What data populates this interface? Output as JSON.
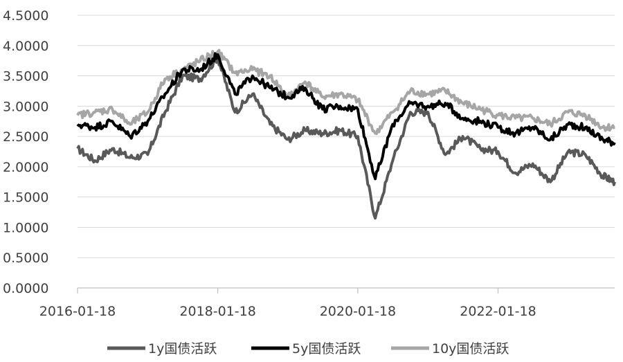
{
  "chart_data": {
    "type": "line",
    "title": "",
    "xlabel": "",
    "ylabel": "",
    "ylim": [
      0,
      4.5
    ],
    "y_ticks": [
      "0.0000",
      "0.5000",
      "1.0000",
      "1.5000",
      "2.0000",
      "2.5000",
      "3.0000",
      "3.5000",
      "4.0000",
      "4.5000"
    ],
    "x_ticks": [
      "2016-01-18",
      "2018-01-18",
      "2020-01-18",
      "2022-01-18"
    ],
    "xlim": [
      "2016-01-18",
      "2023-09-18"
    ],
    "grid": "horizontal",
    "legend_position": "bottom",
    "x": [
      "2016-01-18",
      "2016-04-18",
      "2016-07-18",
      "2016-10-18",
      "2017-01-18",
      "2017-04-18",
      "2017-07-18",
      "2017-10-18",
      "2018-01-18",
      "2018-04-18",
      "2018-07-18",
      "2018-10-18",
      "2019-01-18",
      "2019-04-18",
      "2019-07-18",
      "2019-10-18",
      "2020-01-18",
      "2020-04-18",
      "2020-07-18",
      "2020-10-18",
      "2021-01-18",
      "2021-04-18",
      "2021-07-18",
      "2021-10-18",
      "2022-01-18",
      "2022-04-18",
      "2022-07-18",
      "2022-10-18",
      "2023-01-18",
      "2023-04-18",
      "2023-07-18",
      "2023-09-18"
    ],
    "series": [
      {
        "name": "1y国债活跃",
        "color": "#595959",
        "values": [
          2.3,
          2.1,
          2.3,
          2.15,
          2.2,
          2.9,
          3.5,
          3.45,
          3.8,
          2.9,
          3.2,
          2.7,
          2.45,
          2.6,
          2.55,
          2.6,
          2.5,
          1.15,
          2.1,
          2.9,
          2.9,
          2.2,
          2.5,
          2.3,
          2.25,
          1.9,
          2.05,
          1.75,
          2.25,
          2.2,
          1.85,
          1.75
        ]
      },
      {
        "name": "5y国债活跃",
        "color": "#000000",
        "values": [
          2.7,
          2.65,
          2.75,
          2.5,
          2.75,
          3.2,
          3.6,
          3.6,
          3.85,
          3.2,
          3.5,
          3.3,
          3.15,
          3.3,
          2.95,
          3.0,
          2.95,
          1.8,
          2.7,
          3.05,
          3.0,
          3.05,
          2.8,
          2.75,
          2.65,
          2.55,
          2.65,
          2.45,
          2.7,
          2.65,
          2.45,
          2.4
        ]
      },
      {
        "name": "10y国债活跃",
        "color": "#a6a6a6",
        "values": [
          2.85,
          2.9,
          2.95,
          2.7,
          2.9,
          3.45,
          3.6,
          3.75,
          3.9,
          3.55,
          3.6,
          3.5,
          3.15,
          3.4,
          3.15,
          3.2,
          3.1,
          2.55,
          2.9,
          3.25,
          3.2,
          3.25,
          3.05,
          2.95,
          2.85,
          2.8,
          2.8,
          2.7,
          2.9,
          2.85,
          2.65,
          2.65
        ]
      }
    ]
  }
}
